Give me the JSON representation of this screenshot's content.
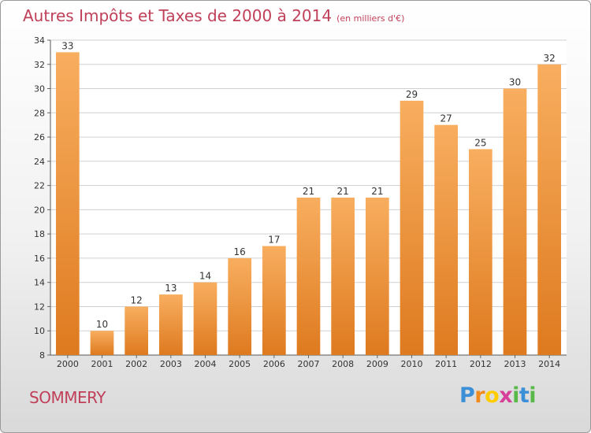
{
  "header": {
    "title": "Autres Impôts et Taxes de 2000 à 2014",
    "unit": "(en milliers d'€)"
  },
  "footer": {
    "place": "SOMMERY",
    "brand": "Proxiti",
    "brand_colors": [
      "#3b8fd6",
      "#f08a1c",
      "#ffcc00",
      "#d6409a",
      "#58b848",
      "#3b8fd6",
      "#58b848"
    ]
  },
  "colors": {
    "bar_light": "#f8ae5f",
    "bar_dark": "#de7a1f",
    "title": "#c0405a",
    "grid": "#d0d0d0"
  },
  "chart_data": {
    "type": "bar",
    "categories": [
      "2000",
      "2001",
      "2002",
      "2003",
      "2004",
      "2005",
      "2006",
      "2007",
      "2008",
      "2009",
      "2010",
      "2011",
      "2012",
      "2013",
      "2014"
    ],
    "values": [
      33,
      10,
      12,
      13,
      14,
      16,
      17,
      21,
      21,
      21,
      29,
      27,
      25,
      30,
      32
    ],
    "ylim": [
      8,
      34
    ],
    "yticks": [
      8,
      10,
      12,
      14,
      16,
      18,
      20,
      22,
      24,
      26,
      28,
      30,
      32,
      34
    ],
    "grid": "horizontal",
    "data_labels": true
  }
}
